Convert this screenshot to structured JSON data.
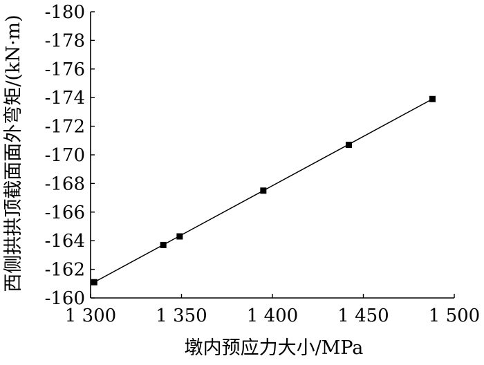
{
  "chart_data": {
    "type": "scatter",
    "title": "",
    "xlabel": "墩内预应力大小/MPa",
    "ylabel": "西侧拱拱顶截面面外弯矩/(kN·m)",
    "xlim": [
      1300,
      1500
    ],
    "ylim": [
      -160,
      -180
    ],
    "x_ticks": [
      1300,
      1350,
      1400,
      1450,
      1500
    ],
    "x_tick_labels": [
      "1 300",
      "1 350",
      "1 400",
      "1 450",
      "1 500"
    ],
    "y_ticks": [
      -160,
      -162,
      -164,
      -166,
      -168,
      -170,
      -172,
      -174,
      -176,
      -178,
      -180
    ],
    "y_tick_labels": [
      "-160",
      "-162",
      "-164",
      "-166",
      "-168",
      "-170",
      "-172",
      "-174",
      "-176",
      "-178",
      "-180"
    ],
    "grid": false,
    "legend": "none",
    "series": [
      {
        "marker": "square",
        "x": [
          1302,
          1340,
          1349,
          1395,
          1442,
          1488
        ],
        "y": [
          -161.1,
          -163.7,
          -164.3,
          -167.5,
          -170.7,
          -173.9
        ]
      }
    ],
    "fit_line": {
      "x": [
        1302,
        1488
      ],
      "y": [
        -161.1,
        -173.9
      ]
    },
    "colors": {
      "ink": "#000000",
      "background": "#ffffff"
    }
  }
}
